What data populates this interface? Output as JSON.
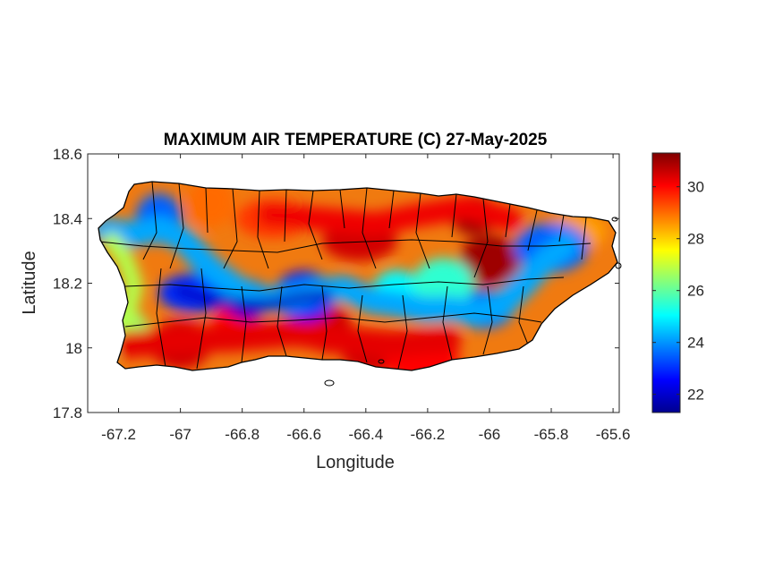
{
  "chart_data": {
    "type": "heatmap",
    "title": "MAXIMUM AIR TEMPERATURE (C) 27-May-2025",
    "xlabel": "Longitude",
    "ylabel": "Latitude",
    "xlim": [
      -67.3,
      -65.58
    ],
    "ylim": [
      17.8,
      18.6
    ],
    "xticks": [
      -67.2,
      -67,
      -66.8,
      -66.6,
      -66.4,
      -66.2,
      -66,
      -65.8,
      -65.6
    ],
    "xtick_labels": [
      "-67.2",
      "-67",
      "-66.8",
      "-66.6",
      "-66.4",
      "-66.2",
      "-66",
      "-65.8",
      "-65.6"
    ],
    "yticks": [
      17.8,
      18,
      18.2,
      18.4,
      18.6
    ],
    "ytick_labels": [
      "17.8",
      "18",
      "18.2",
      "18.4",
      "18.6"
    ],
    "colorbar": {
      "colormap": "jet",
      "range": [
        21.3,
        31.3
      ],
      "ticks": [
        22,
        24,
        26,
        28,
        30
      ],
      "tick_labels": [
        "22",
        "24",
        "26",
        "28",
        "30"
      ]
    },
    "grid": false,
    "hotspots": [
      {
        "lon": -66.05,
        "lat": 18.41,
        "value": 31.0
      },
      {
        "lon": -66.0,
        "lat": 18.27,
        "value": 31.0
      },
      {
        "lon": -66.42,
        "lat": 18.33,
        "value": 30.5
      },
      {
        "lon": -66.52,
        "lat": 18.06,
        "value": 30.5
      },
      {
        "lon": -66.38,
        "lat": 17.98,
        "value": 30.5
      },
      {
        "lon": -66.22,
        "lat": 17.97,
        "value": 30.0
      },
      {
        "lon": -66.82,
        "lat": 18.07,
        "value": 30.0
      },
      {
        "lon": -67.0,
        "lat": 18.01,
        "value": 30.5
      },
      {
        "lon": -66.7,
        "lat": 18.4,
        "value": 29.5
      },
      {
        "lon": -66.9,
        "lat": 18.45,
        "value": 29.0
      },
      {
        "lon": -65.72,
        "lat": 18.36,
        "value": 28.5
      },
      {
        "lon": -67.22,
        "lat": 18.05,
        "value": 26.5
      }
    ],
    "coldspots": [
      {
        "lon": -66.78,
        "lat": 18.15,
        "value": 22.0
      },
      {
        "lon": -66.6,
        "lat": 18.16,
        "value": 22.5
      },
      {
        "lon": -66.95,
        "lat": 18.17,
        "value": 23.0
      },
      {
        "lon": -67.07,
        "lat": 18.4,
        "value": 23.5
      },
      {
        "lon": -66.02,
        "lat": 18.12,
        "value": 23.5
      },
      {
        "lon": -65.8,
        "lat": 18.31,
        "value": 23.5
      },
      {
        "lon": -66.3,
        "lat": 18.18,
        "value": 25.0
      },
      {
        "lon": -66.15,
        "lat": 18.2,
        "value": 25.5
      }
    ]
  }
}
